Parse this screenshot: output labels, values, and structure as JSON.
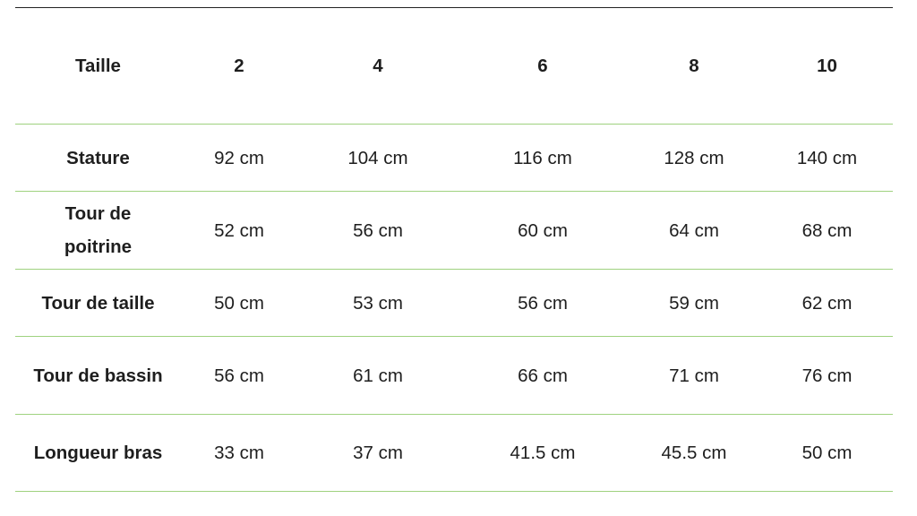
{
  "table": {
    "header": [
      "Taille",
      "2",
      "4",
      "6",
      "8",
      "10"
    ],
    "rows": [
      {
        "label": "Stature",
        "values": [
          "92 cm",
          "104 cm",
          "116 cm",
          "128 cm",
          "140 cm"
        ]
      },
      {
        "label": "Tour de poitrine",
        "values": [
          "52 cm",
          "56 cm",
          "60 cm",
          "64 cm",
          "68 cm"
        ]
      },
      {
        "label": "Tour de taille",
        "values": [
          "50 cm",
          "53 cm",
          "56 cm",
          "59 cm",
          "62 cm"
        ]
      },
      {
        "label": "Tour de bassin",
        "values": [
          "56 cm",
          "61 cm",
          "66 cm",
          "71 cm",
          "76 cm"
        ]
      },
      {
        "label": "Longueur bras",
        "values": [
          "33 cm",
          "37 cm",
          "41.5 cm",
          "45.5 cm",
          "50 cm"
        ]
      }
    ]
  },
  "colors": {
    "rule_top": "#222222",
    "rule_rows": "#9fd27f"
  }
}
